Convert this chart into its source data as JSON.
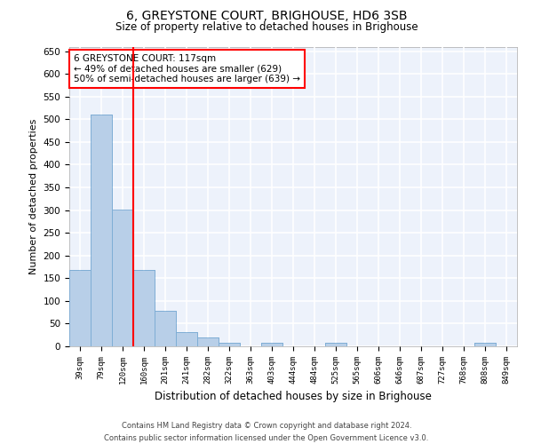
{
  "title": "6, GREYSTONE COURT, BRIGHOUSE, HD6 3SB",
  "subtitle": "Size of property relative to detached houses in Brighouse",
  "xlabel": "Distribution of detached houses by size in Brighouse",
  "ylabel": "Number of detached properties",
  "categories": [
    "39sqm",
    "79sqm",
    "120sqm",
    "160sqm",
    "201sqm",
    "241sqm",
    "282sqm",
    "322sqm",
    "363sqm",
    "403sqm",
    "444sqm",
    "484sqm",
    "525sqm",
    "565sqm",
    "606sqm",
    "646sqm",
    "687sqm",
    "727sqm",
    "768sqm",
    "808sqm",
    "849sqm"
  ],
  "values": [
    168,
    510,
    302,
    168,
    78,
    32,
    20,
    8,
    0,
    8,
    0,
    0,
    8,
    0,
    0,
    0,
    0,
    0,
    0,
    8,
    0
  ],
  "bar_color": "#b8cfe8",
  "bar_edge_color": "#7aabd4",
  "background_color": "#edf2fb",
  "grid_color": "#ffffff",
  "red_line_x": 2.5,
  "ylim": [
    0,
    660
  ],
  "yticks": [
    0,
    50,
    100,
    150,
    200,
    250,
    300,
    350,
    400,
    450,
    500,
    550,
    600,
    650
  ],
  "annotation_text": "6 GREYSTONE COURT: 117sqm\n← 49% of detached houses are smaller (629)\n50% of semi-detached houses are larger (639) →",
  "footer_line1": "Contains HM Land Registry data © Crown copyright and database right 2024.",
  "footer_line2": "Contains public sector information licensed under the Open Government Licence v3.0."
}
